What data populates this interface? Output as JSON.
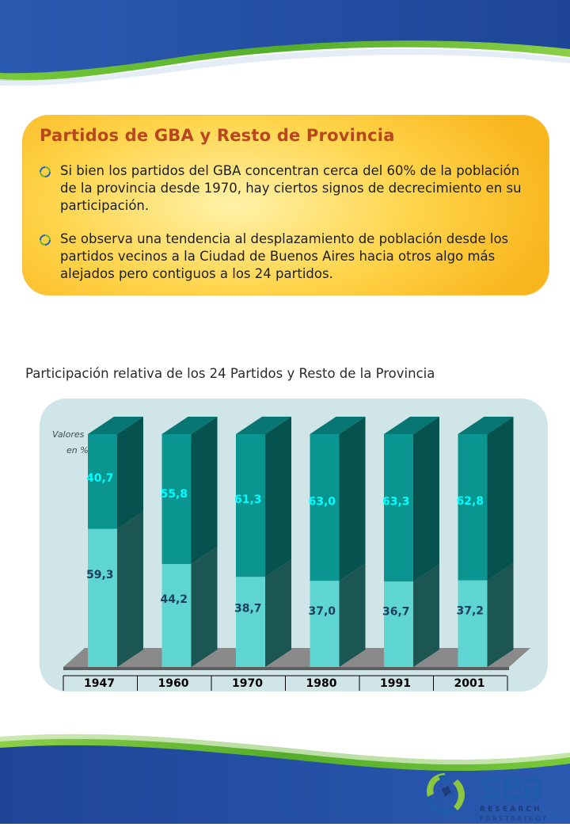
{
  "callout": {
    "title": "Partidos de GBA y Resto de Provincia",
    "bullets": [
      "Si bien los partidos del GBA concentran cerca del 60% de la población de la provincia desde 1970, hay ciertos signos de decrecimiento en su participación.",
      "Se observa una tendencia al desplazamiento de población desde los partidos vecinos a la Ciudad de Buenos Aires hacia otros algo más alejados pero contiguos a los 24 partidos."
    ]
  },
  "chart_title": "Participación relativa de los 24 Partidos y Resto de la Provincia",
  "chart_data": {
    "type": "bar",
    "stacked": true,
    "categories": [
      "1947",
      "1960",
      "1970",
      "1980",
      "1991",
      "2001"
    ],
    "series": [
      {
        "values": [
          59.3,
          44.2,
          38.7,
          37.0,
          36.7,
          37.2
        ],
        "labels": [
          "59,3",
          "44,2",
          "38,7",
          "37,0",
          "36,7",
          "37,2"
        ],
        "color": "#5fd5d1",
        "label_color": "#1f3f60"
      },
      {
        "values": [
          40.7,
          55.8,
          61.3,
          63.0,
          63.3,
          62.8
        ],
        "labels": [
          "40,7",
          "55,8",
          "61,3",
          "63,0",
          "63,3",
          "62,8"
        ],
        "color": "#0a9590",
        "label_color": "#00ffff"
      }
    ],
    "ylabel": [
      "Valores",
      "en %"
    ],
    "ylim": [
      0,
      100
    ],
    "grid": false
  },
  "logo": {
    "name": "gea",
    "line1": "R E S E A R C H",
    "line2": "F O R   S T R A T E G Y",
    "colors": {
      "green": "#8ac640",
      "blue": "#1f5ba8",
      "navy": "#1c3d7a"
    }
  },
  "colors": {
    "title": "#b8461e",
    "wave_blue": "#2a55a8",
    "wave_green": "#5cb531"
  }
}
